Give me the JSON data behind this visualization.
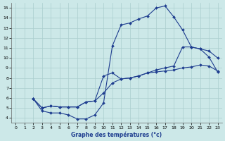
{
  "xlabel": "Graphe des températures (°c)",
  "xlim": [
    -0.5,
    23.5
  ],
  "ylim": [
    3.5,
    15.5
  ],
  "yticks": [
    4,
    5,
    6,
    7,
    8,
    9,
    10,
    11,
    12,
    13,
    14,
    15
  ],
  "xticks": [
    0,
    1,
    2,
    3,
    4,
    5,
    6,
    7,
    8,
    9,
    10,
    11,
    12,
    13,
    14,
    15,
    16,
    17,
    18,
    19,
    20,
    21,
    22,
    23
  ],
  "line_color": "#1e3d8f",
  "bg_color": "#cce8e8",
  "grid_color": "#aacece",
  "line1_x": [
    2,
    3,
    4,
    5,
    6,
    7,
    8,
    9,
    10,
    11,
    12,
    13,
    14,
    15,
    16,
    17,
    18,
    19,
    20,
    21,
    22,
    23
  ],
  "line1_y": [
    5.9,
    4.7,
    4.5,
    4.5,
    4.3,
    3.9,
    3.9,
    4.3,
    5.5,
    11.2,
    13.3,
    13.5,
    13.9,
    14.2,
    15.0,
    15.2,
    14.1,
    12.8,
    11.1,
    10.9,
    10.1,
    8.6
  ],
  "line2_x": [
    2,
    3,
    4,
    5,
    6,
    7,
    8,
    9,
    10,
    11,
    12,
    13,
    14,
    15,
    16,
    17,
    18,
    19,
    20,
    21,
    22,
    23
  ],
  "line2_y": [
    5.9,
    5.0,
    5.2,
    5.1,
    5.1,
    5.1,
    5.6,
    5.7,
    6.5,
    7.5,
    7.9,
    8.0,
    8.2,
    8.5,
    8.6,
    8.7,
    8.8,
    9.0,
    9.1,
    9.3,
    9.2,
    8.7
  ],
  "line3_x": [
    2,
    3,
    4,
    5,
    6,
    7,
    8,
    9,
    10,
    11,
    12,
    13,
    14,
    15,
    16,
    17,
    18,
    19,
    20,
    21,
    22,
    23
  ],
  "line3_y": [
    5.9,
    5.0,
    5.2,
    5.1,
    5.1,
    5.1,
    5.6,
    5.7,
    8.2,
    8.5,
    7.9,
    8.0,
    8.2,
    8.5,
    8.8,
    9.0,
    9.2,
    11.1,
    11.1,
    10.9,
    10.7,
    10.0
  ]
}
